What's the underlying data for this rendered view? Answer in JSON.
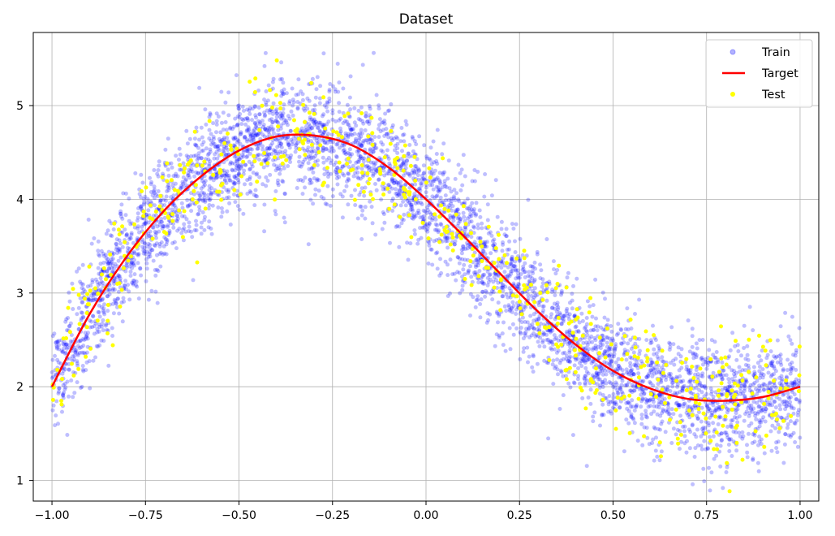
{
  "chart_data": {
    "type": "scatter",
    "title": "Dataset",
    "xlabel": "",
    "ylabel": "",
    "xlim": [
      -1.05,
      1.05
    ],
    "ylim": [
      0.78,
      5.78
    ],
    "xticks": [
      -1.0,
      -0.75,
      -0.5,
      -0.25,
      0.0,
      0.25,
      0.5,
      0.75,
      1.0
    ],
    "xtick_labels": [
      "−1.00",
      "−0.75",
      "−0.50",
      "−0.25",
      "0.00",
      "0.25",
      "0.50",
      "0.75",
      "1.00"
    ],
    "yticks": [
      1,
      2,
      3,
      4,
      5
    ],
    "ytick_labels": [
      "1",
      "2",
      "3",
      "4",
      "5"
    ],
    "grid": true,
    "legend": {
      "placement": "top-right",
      "entries": [
        "Train",
        "Target",
        "Test"
      ]
    },
    "target_curve": {
      "x": [
        -1.0,
        -0.9,
        -0.8,
        -0.7,
        -0.6,
        -0.5,
        -0.4,
        -0.3,
        -0.2,
        -0.1,
        0.0,
        0.1,
        0.2,
        0.3,
        0.4,
        0.5,
        0.6,
        0.7,
        0.8,
        0.9,
        1.0
      ],
      "y": [
        2.0,
        2.77,
        3.39,
        3.88,
        4.25,
        4.52,
        4.67,
        4.68,
        4.58,
        4.34,
        4.0,
        3.61,
        3.2,
        2.8,
        2.45,
        2.17,
        1.98,
        1.87,
        1.85,
        1.89,
        2.0
      ]
    },
    "series": [
      {
        "name": "Train",
        "kind": "scatter",
        "color": "#0000ff",
        "alpha": 0.25,
        "count": 4500,
        "noise_sd": 0.3
      },
      {
        "name": "Target",
        "kind": "line",
        "color": "#ff0000"
      },
      {
        "name": "Test",
        "kind": "scatter",
        "color": "#ffff00",
        "count": 500,
        "noise_sd": 0.3
      }
    ]
  }
}
